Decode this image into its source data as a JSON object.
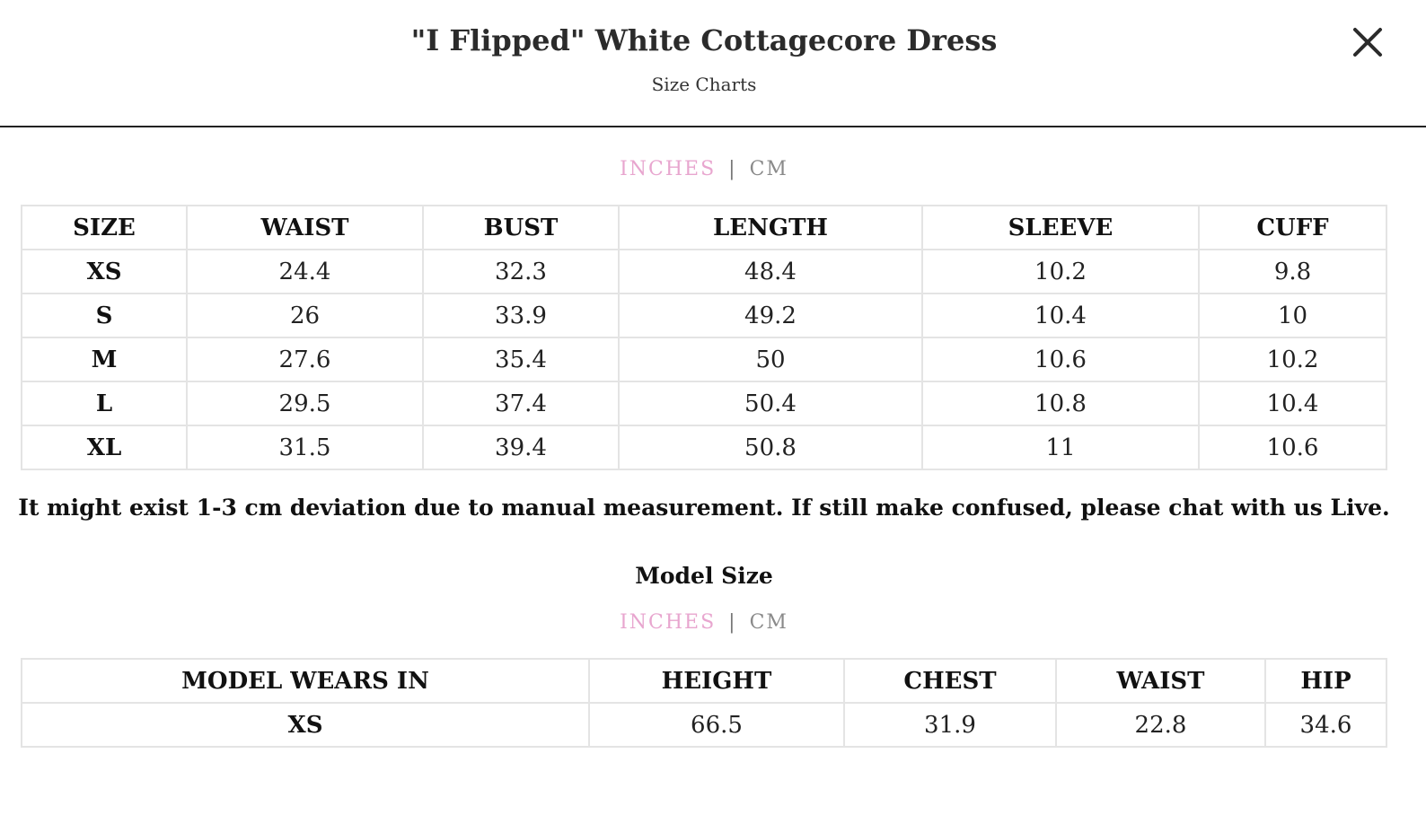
{
  "header": {
    "title": "\"I Flipped\" White Cottagecore Dress",
    "subtitle": "Size Charts",
    "close_icon": "close-icon"
  },
  "size_chart": {
    "units": {
      "inches": "INCHES",
      "separator": "|",
      "cm": "CM",
      "active": "INCHES",
      "active_color": "#e8a6cf"
    },
    "columns": [
      "SIZE",
      "WAIST",
      "BUST",
      "LENGTH",
      "SLEEVE",
      "CUFF"
    ],
    "rows": [
      [
        "XS",
        "24.4",
        "32.3",
        "48.4",
        "10.2",
        "9.8"
      ],
      [
        "S",
        "26",
        "33.9",
        "49.2",
        "10.4",
        "10"
      ],
      [
        "M",
        "27.6",
        "35.4",
        "50",
        "10.6",
        "10.2"
      ],
      [
        "L",
        "29.5",
        "37.4",
        "50.4",
        "10.8",
        "10.4"
      ],
      [
        "XL",
        "31.5",
        "39.4",
        "50.8",
        "11",
        "10.6"
      ]
    ]
  },
  "note": "It might exist 1-3 cm deviation due to manual measurement. If still make confused, please chat with us Live.",
  "model_size": {
    "title": "Model Size",
    "units": {
      "inches": "INCHES",
      "separator": "|",
      "cm": "CM"
    },
    "columns": [
      "MODEL WEARS IN",
      "HEIGHT",
      "CHEST",
      "WAIST",
      "HIP"
    ],
    "rows": [
      [
        "XS",
        "66.5",
        "31.9",
        "22.8",
        "34.6"
      ]
    ]
  }
}
